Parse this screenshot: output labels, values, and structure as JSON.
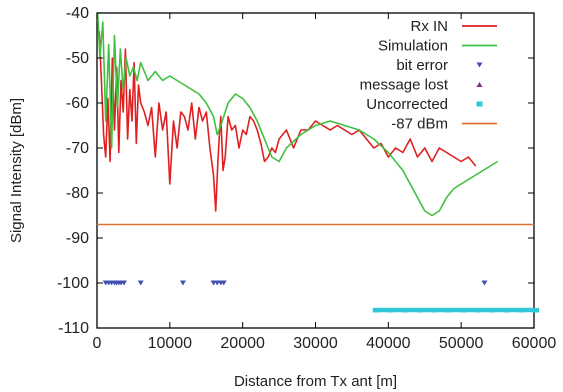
{
  "chart_data": {
    "type": "line",
    "xlabel": "Distance from Tx ant [m]",
    "ylabel": "Signal Intensity [dBm]",
    "xlim": [
      0,
      60000
    ],
    "ylim": [
      -110,
      -40
    ],
    "x_ticks": [
      "0",
      "10000",
      "20000",
      "30000",
      "40000",
      "50000",
      "60000"
    ],
    "y_ticks": [
      "-40",
      "-50",
      "-60",
      "-70",
      "-80",
      "-90",
      "-100",
      "-110"
    ],
    "legend_position": "top-right",
    "series": [
      {
        "name": "Rx IN",
        "kind": "line",
        "color": "#e02020",
        "x": [
          300,
          600,
          900,
          1200,
          1500,
          1800,
          2100,
          2400,
          2700,
          3000,
          3300,
          3600,
          3900,
          4200,
          4500,
          4800,
          5100,
          5400,
          5700,
          6000,
          6500,
          7000,
          7500,
          8000,
          8500,
          9000,
          9500,
          10000,
          10500,
          11000,
          11500,
          12000,
          12500,
          13000,
          13500,
          14000,
          14500,
          15000,
          15500,
          16000,
          16300,
          16600,
          16800,
          17000,
          17300,
          17600,
          18000,
          18500,
          19000,
          19500,
          20000,
          20500,
          21000,
          21500,
          22000,
          22500,
          23000,
          23500,
          24000,
          24500,
          25000,
          26000,
          27000,
          28000,
          29000,
          30000,
          31000,
          32000,
          33000,
          34000,
          35000,
          36000,
          37000,
          38000,
          39000,
          40000,
          41000,
          42000,
          43000,
          44000,
          45000,
          46000,
          47000,
          48000,
          49000,
          50000,
          51000,
          52000
        ],
        "y": [
          -44,
          -55,
          -67,
          -72,
          -59,
          -73,
          -50,
          -66,
          -52,
          -71,
          -55,
          -62,
          -48,
          -68,
          -57,
          -64,
          -51,
          -69,
          -56,
          -60,
          -62,
          -65,
          -61,
          -72,
          -60,
          -66,
          -62,
          -78,
          -64,
          -70,
          -62,
          -63,
          -66,
          -60,
          -68,
          -61,
          -64,
          -62,
          -70,
          -76,
          -84,
          -73,
          -67,
          -63,
          -75,
          -72,
          -63,
          -66,
          -65,
          -70,
          -66,
          -67,
          -63,
          -64,
          -66,
          -69,
          -73,
          -72,
          -70,
          -71,
          -68,
          -66,
          -70,
          -66,
          -66,
          -64,
          -65,
          -66,
          -65,
          -66,
          -67,
          -66,
          -68,
          -70,
          -69,
          -72,
          -70,
          -71,
          -68,
          -72,
          -70,
          -73,
          -70,
          -71,
          -72,
          -73,
          -72,
          -74
        ]
      },
      {
        "name": "Simulation",
        "kind": "line",
        "color": "#40c040",
        "x": [
          100,
          400,
          800,
          1200,
          1600,
          2000,
          2400,
          2800,
          3200,
          3600,
          4000,
          4500,
          5000,
          5500,
          6000,
          7000,
          8000,
          9000,
          10000,
          11000,
          12000,
          13000,
          14000,
          15000,
          16000,
          16500,
          17000,
          18000,
          19000,
          20000,
          21000,
          22000,
          23000,
          24000,
          25000,
          26000,
          28000,
          30000,
          32000,
          34000,
          36000,
          38000,
          40000,
          42000,
          44000,
          45000,
          46000,
          47000,
          48000,
          49000,
          50000,
          51000,
          52000,
          53000,
          54000,
          55000
        ],
        "y": [
          -40,
          -50,
          -42,
          -64,
          -47,
          -70,
          -45,
          -61,
          -48,
          -57,
          -50,
          -54,
          -52,
          -55,
          -51,
          -55,
          -53,
          -55,
          -54,
          -55,
          -56,
          -57,
          -58,
          -60,
          -63,
          -67,
          -65,
          -60,
          -58,
          -59,
          -61,
          -64,
          -68,
          -72,
          -73,
          -70,
          -67,
          -65,
          -64,
          -65,
          -66,
          -68,
          -71,
          -75,
          -81,
          -84,
          -85,
          -84,
          -81,
          -79,
          -78,
          -77,
          -76,
          -75,
          -74,
          -73
        ]
      },
      {
        "name": "bit error",
        "kind": "points",
        "color": "#4050b0",
        "x": [
          1200,
          1600,
          2000,
          2400,
          2700,
          3000,
          3300,
          3700,
          6000,
          11800,
          16000,
          16500,
          17000,
          17400,
          53200
        ],
        "y": [
          -100,
          -100,
          -100,
          -100,
          -100,
          -100,
          -100,
          -100,
          -100,
          -100,
          -100,
          -100,
          -100,
          -100,
          -100
        ]
      },
      {
        "name": "message lost",
        "kind": "points",
        "color": "#803080",
        "x": [],
        "y": []
      },
      {
        "name": "Uncorrected",
        "kind": "points",
        "color": "#30c8d8",
        "x": [
          38000,
          40000,
          42000,
          44000,
          46000,
          48000,
          50000,
          52000,
          54000,
          56000,
          58000,
          60000
        ],
        "y": [
          -106,
          -106,
          -106,
          -106,
          -106,
          -106,
          -106,
          -106,
          -106,
          -106,
          -106,
          -106
        ]
      },
      {
        "name": "-87 dBm",
        "kind": "hline",
        "color": "#e07030",
        "y": -87
      }
    ]
  }
}
